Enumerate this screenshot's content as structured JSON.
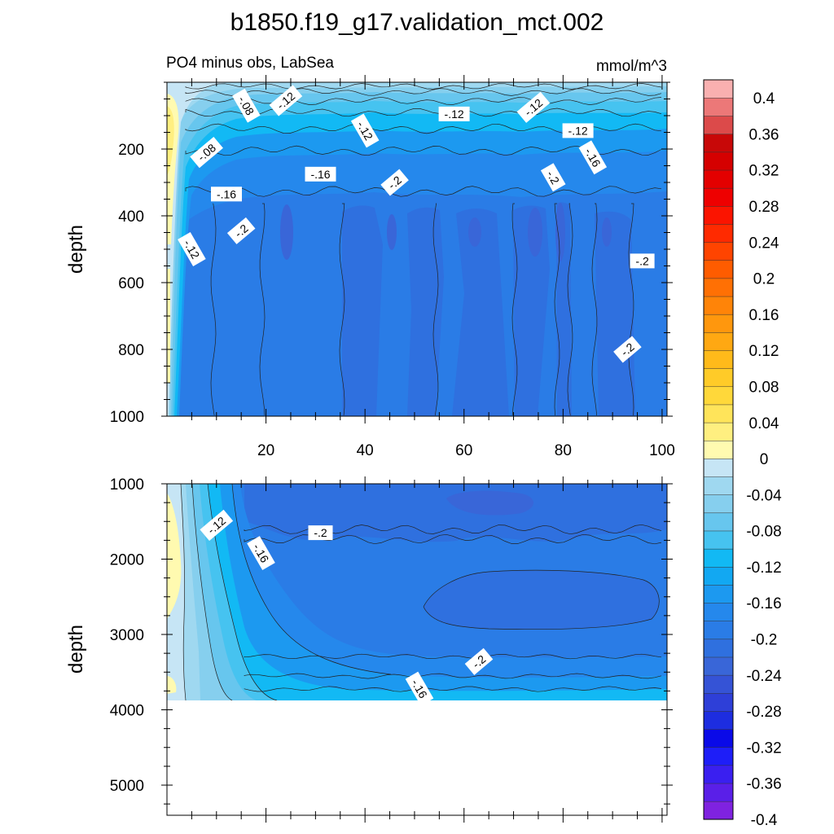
{
  "chart_data": {
    "type": "contour",
    "title": "b1850.f19_g17.validation_mct.002",
    "left_string": "PO4 minus obs, LabSea",
    "right_string": "mmol/m^3",
    "panels": [
      {
        "name": "upper",
        "ylabel": "depth",
        "xlim": [
          0,
          101
        ],
        "ylim": [
          1000,
          0
        ],
        "xticks": [
          20,
          40,
          60,
          80,
          100
        ],
        "yticks": [
          200,
          400,
          600,
          800,
          1000
        ],
        "x_tick_labels_shown": true,
        "contour_labels": [
          {
            "text": "-.12",
            "x": 24,
            "depth": 55
          },
          {
            "text": "-.08",
            "x": 16,
            "depth": 70
          },
          {
            "text": "-.12",
            "x": 58,
            "depth": 95
          },
          {
            "text": "-.12",
            "x": 74,
            "depth": 75
          },
          {
            "text": "-.12",
            "x": 40,
            "depth": 145
          },
          {
            "text": "-.12",
            "x": 83,
            "depth": 145
          },
          {
            "text": "-.08",
            "x": 8,
            "depth": 210
          },
          {
            "text": "-.16",
            "x": 86,
            "depth": 225
          },
          {
            "text": "-.16",
            "x": 31,
            "depth": 275
          },
          {
            "text": "-.2",
            "x": 46,
            "depth": 300
          },
          {
            "text": "-.2",
            "x": 78,
            "depth": 285
          },
          {
            "text": "-.16",
            "x": 12,
            "depth": 335
          },
          {
            "text": "-.2",
            "x": 15,
            "depth": 445
          },
          {
            "text": "-.12",
            "x": 5,
            "depth": 500
          },
          {
            "text": "-.2",
            "x": 96,
            "depth": 535
          },
          {
            "text": "-.2",
            "x": 93,
            "depth": 800
          }
        ]
      },
      {
        "name": "lower",
        "ylabel": "depth",
        "xlim": [
          0,
          101
        ],
        "ylim": [
          5400,
          1000
        ],
        "yticks": [
          1000,
          2000,
          3000,
          4000,
          5000
        ],
        "x_tick_labels_shown": false,
        "bottom_depth": 3870,
        "contour_labels": [
          {
            "text": "-.12",
            "x": 10,
            "depth": 1550
          },
          {
            "text": "-.16",
            "x": 19,
            "depth": 1920
          },
          {
            "text": "-.2",
            "x": 31,
            "depth": 1650
          },
          {
            "text": "-.2",
            "x": 63,
            "depth": 3360
          },
          {
            "text": "-.16",
            "x": 51,
            "depth": 3720
          }
        ]
      }
    ],
    "colorbar": {
      "levels": [
        -0.4,
        -0.38,
        -0.36,
        -0.34,
        -0.32,
        -0.3,
        -0.28,
        -0.26,
        -0.24,
        -0.22,
        -0.2,
        -0.18,
        -0.16,
        -0.14,
        -0.12,
        -0.1,
        -0.08,
        -0.06,
        -0.04,
        -0.02,
        0,
        0.02,
        0.04,
        0.06,
        0.08,
        0.1,
        0.12,
        0.14,
        0.16,
        0.18,
        0.2,
        0.22,
        0.24,
        0.26,
        0.28,
        0.3,
        0.32,
        0.34,
        0.36,
        0.38,
        0.4
      ],
      "labels": [
        "0.4",
        "0.36",
        "0.32",
        "0.28",
        "0.24",
        "0.2",
        "0.16",
        "0.12",
        "0.08",
        "0.04",
        "0",
        "-0.04",
        "-0.08",
        "-0.12",
        "-0.16",
        "-0.2",
        "-0.24",
        "-0.28",
        "-0.32",
        "-0.36",
        "-0.4"
      ],
      "colors": [
        "#7f22e0",
        "#5a1fe8",
        "#3a1ff0",
        "#1e1ef8",
        "#0a0ae8",
        "#1d2de0",
        "#2e3fd8",
        "#3553d6",
        "#3966d8",
        "#2f70df",
        "#2a7ce6",
        "#2588ec",
        "#1c99f0",
        "#12a8f2",
        "#12b9f4",
        "#46c3f0",
        "#67c6ee",
        "#86cfee",
        "#9fd8f0",
        "#c6e5f5",
        "#fffab0",
        "#ffef80",
        "#ffe45a",
        "#ffd83a",
        "#ffcb28",
        "#ffba1a",
        "#ffa812",
        "#ff970d",
        "#ff8408",
        "#ff7004",
        "#ff5c00",
        "#ff4400",
        "#ff2a00",
        "#fb1400",
        "#ee0000",
        "#e30000",
        "#d50000",
        "#c80808",
        "#dc4a4a",
        "#ec7878",
        "#f9b0b0"
      ]
    }
  }
}
